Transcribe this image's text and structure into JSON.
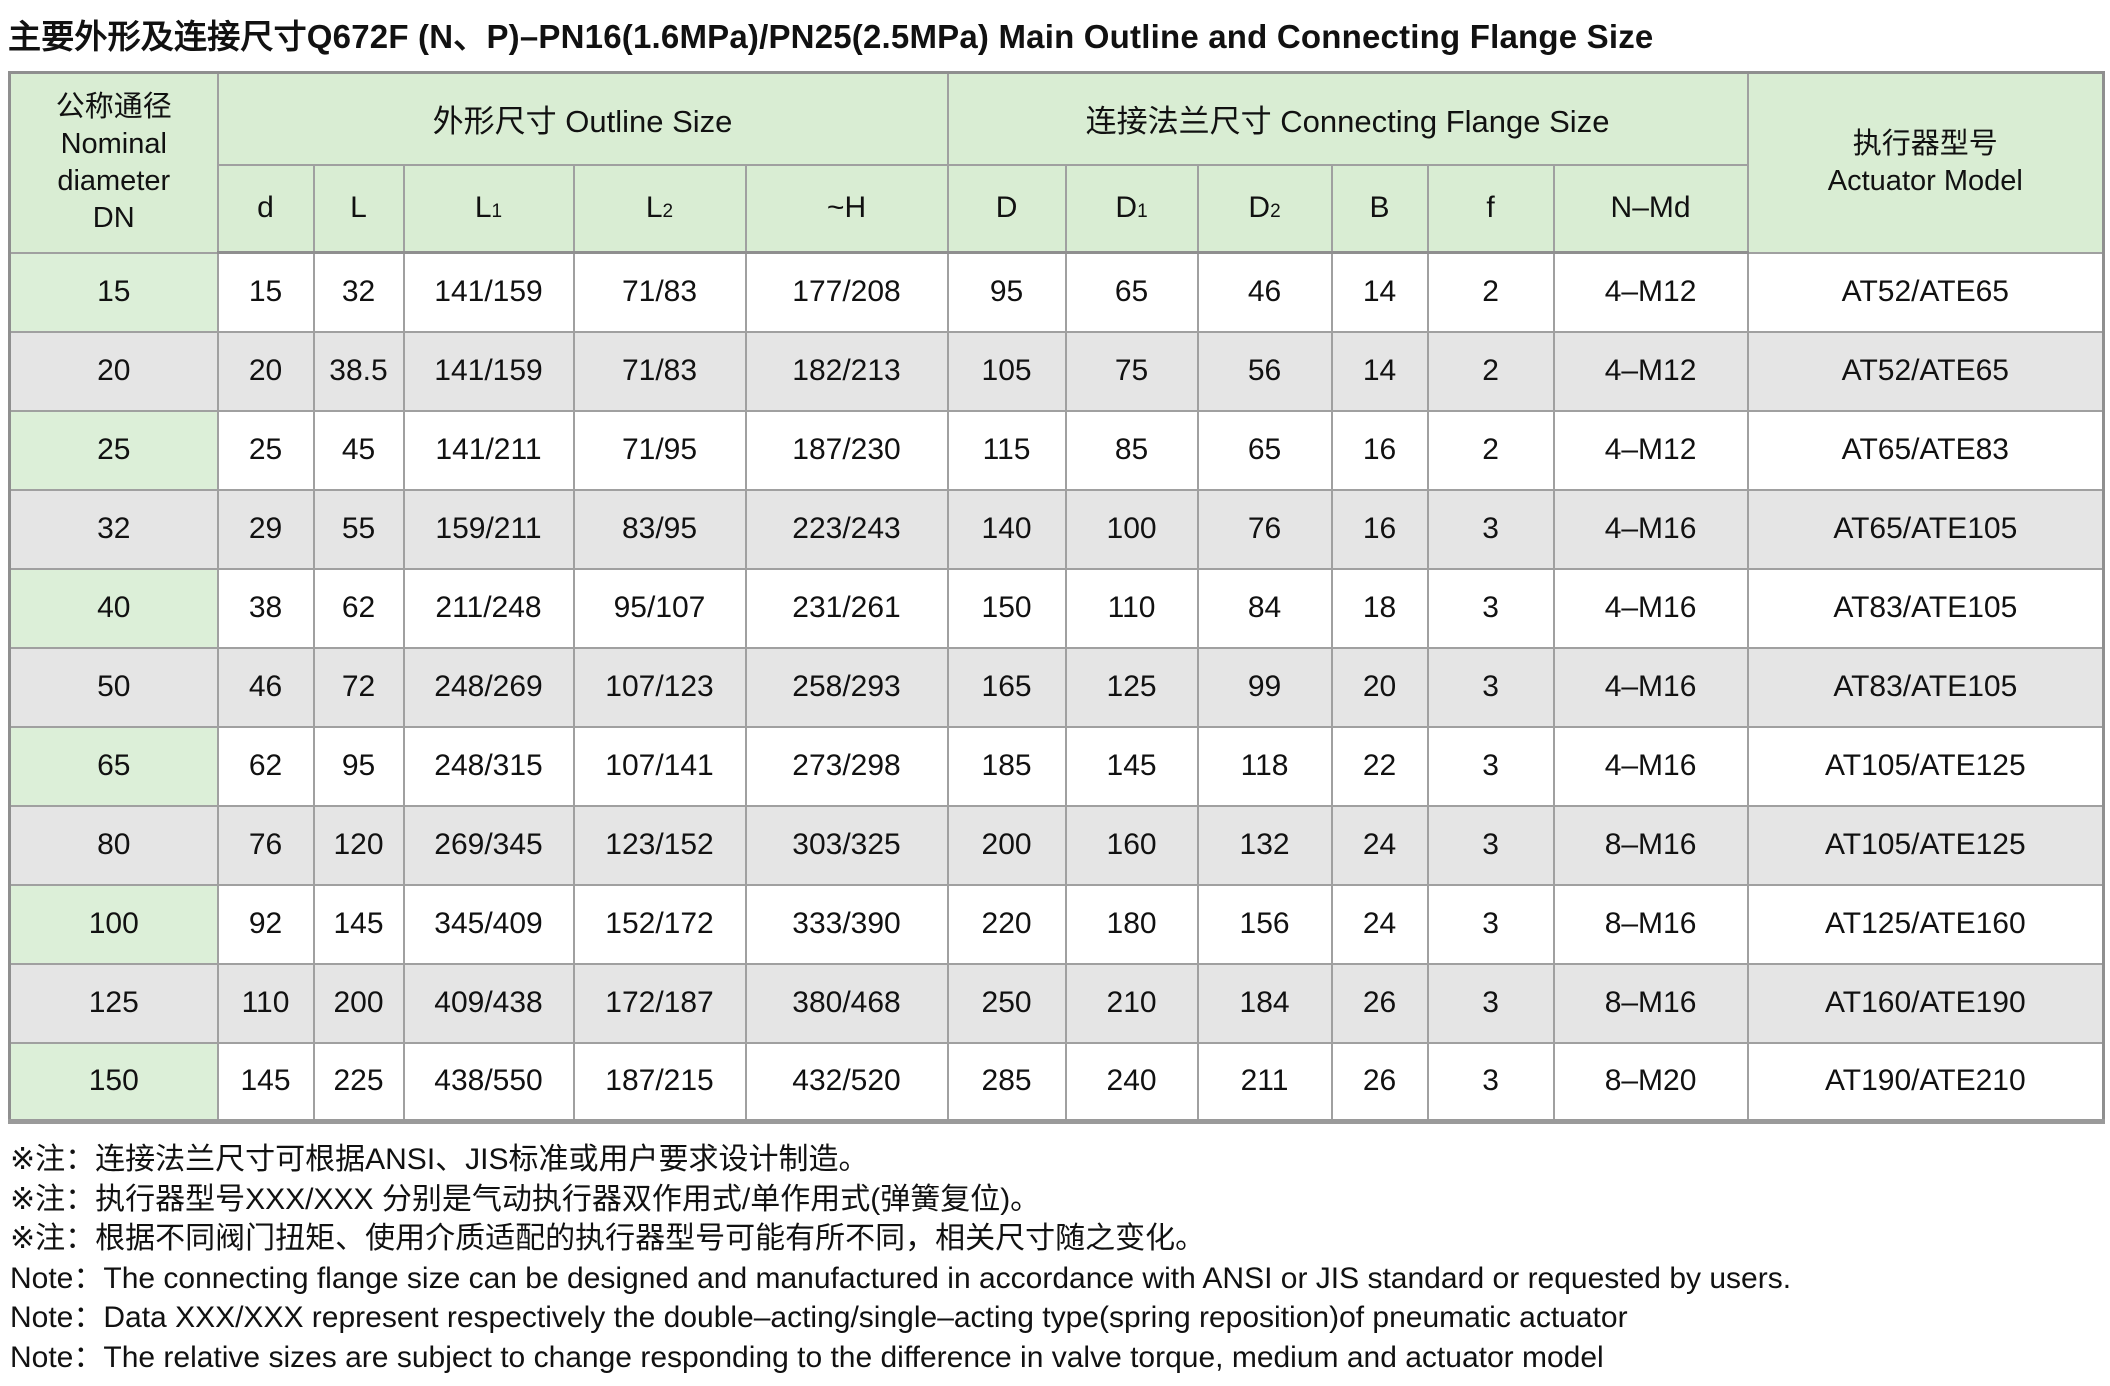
{
  "page": {
    "title": "主要外形及连接尺寸Q672F (N、P)–PN16(1.6MPa)/PN25(2.5MPa) Main Outline and Connecting Flange Size"
  },
  "colors": {
    "header_green": "#d9edd3",
    "dn_column_green": "#dcefd8",
    "alt_row_gray": "#e5e5e5",
    "border_gray": "#a0a0a0"
  },
  "table": {
    "dn_header": "公称通径\nNominal\ndiameter\nDN",
    "outline_group": "外形尺寸 Outline Size",
    "flange_group": "连接法兰尺寸 Connecting Flange Size",
    "actuator_header": "执行器型号\nActuator Model",
    "sub_columns": [
      {
        "base": "d",
        "sub": ""
      },
      {
        "base": "L",
        "sub": ""
      },
      {
        "base": "L",
        "sub": "1"
      },
      {
        "base": "L",
        "sub": "2"
      },
      {
        "base": "~H",
        "sub": ""
      },
      {
        "base": "D",
        "sub": ""
      },
      {
        "base": "D",
        "sub": "1"
      },
      {
        "base": "D",
        "sub": "2"
      },
      {
        "base": "B",
        "sub": ""
      },
      {
        "base": "f",
        "sub": ""
      },
      {
        "base": "N–Md",
        "sub": ""
      }
    ],
    "rows": [
      [
        "15",
        "15",
        "32",
        "141/159",
        "71/83",
        "177/208",
        "95",
        "65",
        "46",
        "14",
        "2",
        "4–M12",
        "AT52/ATE65"
      ],
      [
        "20",
        "20",
        "38.5",
        "141/159",
        "71/83",
        "182/213",
        "105",
        "75",
        "56",
        "14",
        "2",
        "4–M12",
        "AT52/ATE65"
      ],
      [
        "25",
        "25",
        "45",
        "141/211",
        "71/95",
        "187/230",
        "115",
        "85",
        "65",
        "16",
        "2",
        "4–M12",
        "AT65/ATE83"
      ],
      [
        "32",
        "29",
        "55",
        "159/211",
        "83/95",
        "223/243",
        "140",
        "100",
        "76",
        "16",
        "3",
        "4–M16",
        "AT65/ATE105"
      ],
      [
        "40",
        "38",
        "62",
        "211/248",
        "95/107",
        "231/261",
        "150",
        "110",
        "84",
        "18",
        "3",
        "4–M16",
        "AT83/ATE105"
      ],
      [
        "50",
        "46",
        "72",
        "248/269",
        "107/123",
        "258/293",
        "165",
        "125",
        "99",
        "20",
        "3",
        "4–M16",
        "AT83/ATE105"
      ],
      [
        "65",
        "62",
        "95",
        "248/315",
        "107/141",
        "273/298",
        "185",
        "145",
        "118",
        "22",
        "3",
        "4–M16",
        "AT105/ATE125"
      ],
      [
        "80",
        "76",
        "120",
        "269/345",
        "123/152",
        "303/325",
        "200",
        "160",
        "132",
        "24",
        "3",
        "8–M16",
        "AT105/ATE125"
      ],
      [
        "100",
        "92",
        "145",
        "345/409",
        "152/172",
        "333/390",
        "220",
        "180",
        "156",
        "24",
        "3",
        "8–M16",
        "AT125/ATE160"
      ],
      [
        "125",
        "110",
        "200",
        "409/438",
        "172/187",
        "380/468",
        "250",
        "210",
        "184",
        "26",
        "3",
        "8–M16",
        "AT160/ATE190"
      ],
      [
        "150",
        "145",
        "225",
        "438/550",
        "187/215",
        "432/520",
        "285",
        "240",
        "211",
        "26",
        "3",
        "8–M20",
        "AT190/ATE210"
      ]
    ]
  },
  "notes": [
    "※注：连接法兰尺寸可根据ANSI、JIS标准或用户要求设计制造。",
    "※注：执行器型号XXX/XXX 分别是气动执行器双作用式/单作用式(弹簧复位)。",
    "※注：根据不同阀门扭矩、使用介质适配的执行器型号可能有所不同，相关尺寸随之变化。",
    "Note：The connecting flange size can be designed and manufactured in accordance with ANSI or JIS standard or requested by users.",
    "Note：Data XXX/XXX represent respectively the double–acting/single–acting type(spring reposition)of pneumatic actuator",
    "Note：The relative sizes are subject to change responding to the difference in valve torque, medium and actuator model"
  ]
}
